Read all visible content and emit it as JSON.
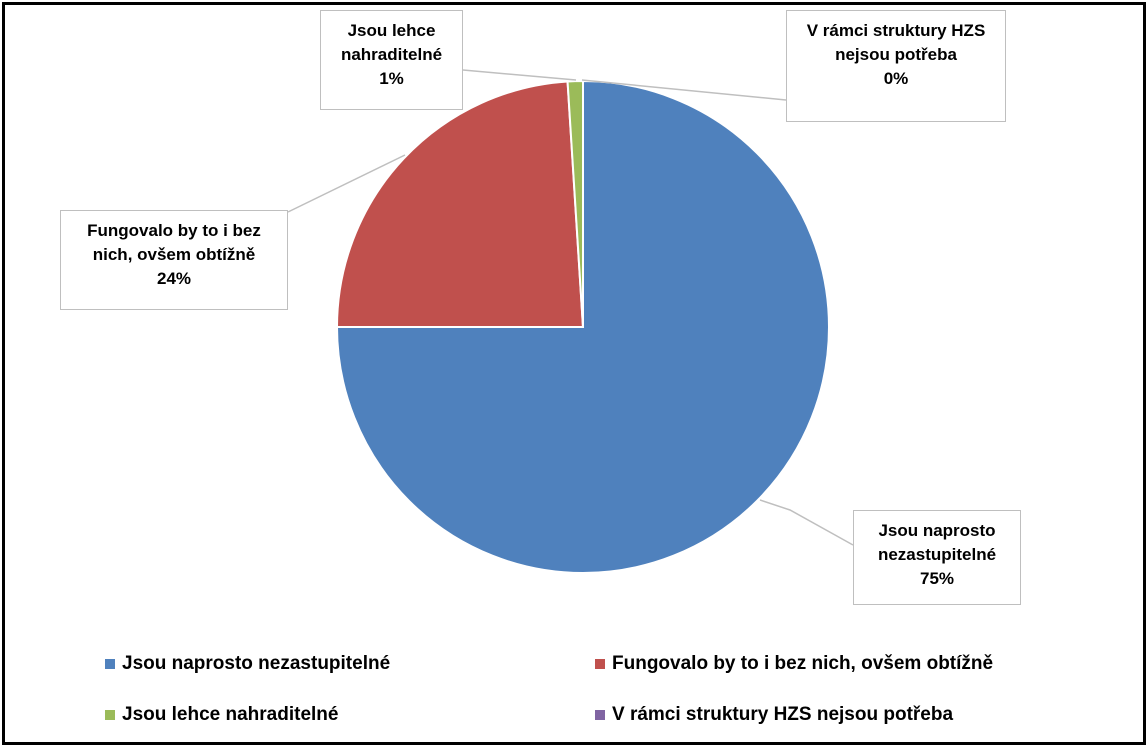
{
  "chart_data": {
    "type": "pie",
    "categories": [
      "Jsou naprosto nezastupitelné",
      "Fungovalo by to i bez nich, ovšem obtížně",
      "Jsou lehce nahraditelné",
      "V rámci struktury HZS nejsou potřeba"
    ],
    "values": [
      75,
      24,
      1,
      0
    ],
    "value_labels": [
      "75%",
      "24%",
      "1%",
      "0%"
    ],
    "colors": [
      "#4f81bd",
      "#c0504d",
      "#9bbb59",
      "#8064a2"
    ],
    "legend": "bottom"
  }
}
